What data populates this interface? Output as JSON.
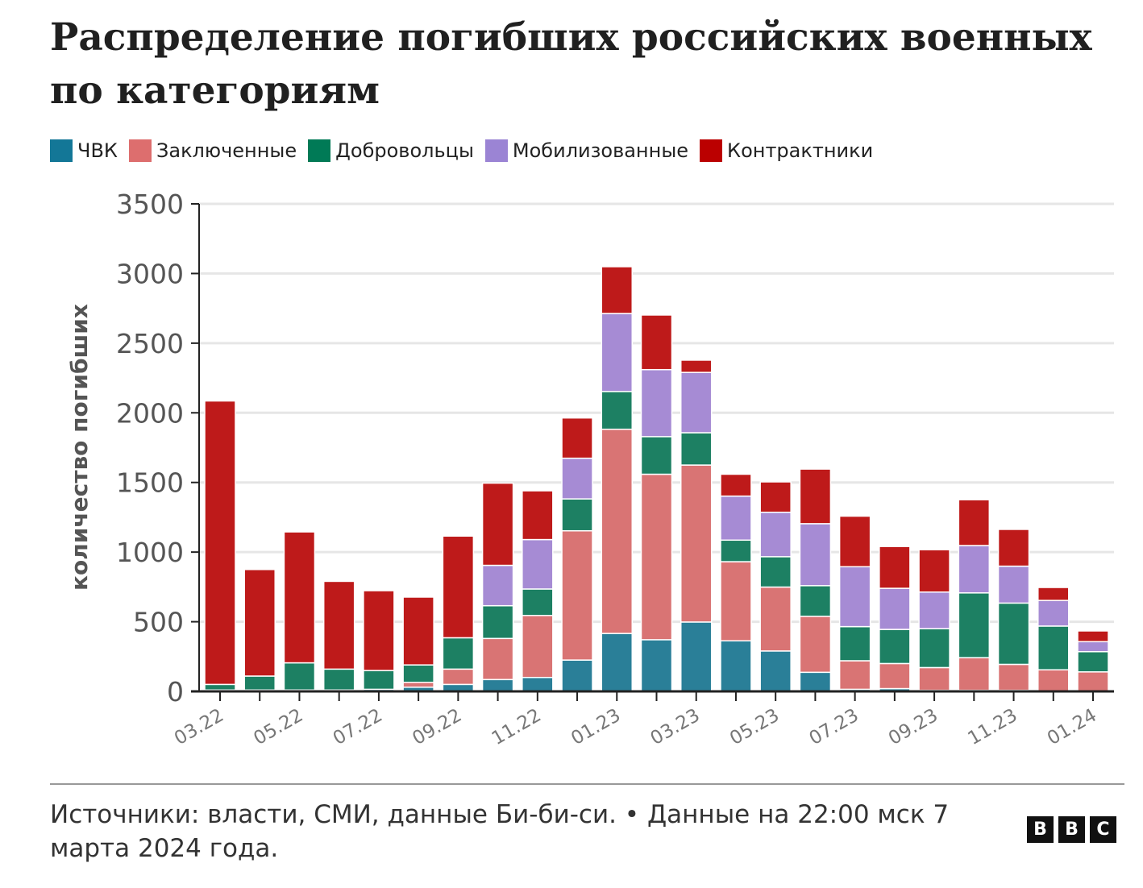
{
  "title": "Распределение погибших российских военных по категориям",
  "footer": {
    "source": "Источники: власти, СМИ, данные Би-би-си. • Данные на 22:00 мск 7 марта 2024 года.",
    "logo": "BBC"
  },
  "chart_data": {
    "type": "bar",
    "stacked": true,
    "title": "Распределение погибших российских военных по категориям",
    "xlabel": "",
    "ylabel": "количество погибших",
    "ylim": [
      0,
      3500
    ],
    "yticks": [
      0,
      500,
      1000,
      1500,
      2000,
      2500,
      3000,
      3500
    ],
    "grid": "horizontal",
    "legend": "top-left",
    "categories": [
      "03.22",
      "04.22",
      "05.22",
      "06.22",
      "07.22",
      "08.22",
      "09.22",
      "10.22",
      "11.22",
      "12.22",
      "01.23",
      "02.23",
      "03.23",
      "04.23",
      "05.23",
      "06.23",
      "07.23",
      "08.23",
      "09.23",
      "10.23",
      "11.23",
      "12.23",
      "01.24"
    ],
    "xtick_labels": [
      "03.22",
      "",
      "05.22",
      "",
      "07.22",
      "",
      "09.22",
      "",
      "11.22",
      "",
      "01.23",
      "",
      "03.23",
      "",
      "05.23",
      "",
      "07.23",
      "",
      "09.23",
      "",
      "11.23",
      "",
      "01.24"
    ],
    "series": [
      {
        "name": "ЧВК",
        "color": "#2a7f98",
        "legend_color": "#137797",
        "values": [
          10,
          10,
          10,
          10,
          15,
          30,
          50,
          85,
          100,
          225,
          416,
          371,
          498,
          363,
          290,
          137,
          15,
          20,
          8,
          8,
          8,
          3,
          0
        ]
      },
      {
        "name": "Заключенные",
        "color": "#d97474",
        "legend_color": "#dd6e6e",
        "values": [
          0,
          0,
          0,
          0,
          0,
          35,
          110,
          295,
          445,
          928,
          1466,
          1188,
          1127,
          568,
          459,
          402,
          205,
          180,
          163,
          234,
          186,
          152,
          140
        ]
      },
      {
        "name": "Добровольцы",
        "color": "#1d8063",
        "legend_color": "#007a56",
        "values": [
          40,
          100,
          195,
          150,
          135,
          125,
          225,
          235,
          190,
          229,
          271,
          270,
          232,
          155,
          218,
          220,
          245,
          245,
          279,
          465,
          440,
          314,
          145
        ]
      },
      {
        "name": "Мобилизованные",
        "color": "#a68bd4",
        "legend_color": "#9b84d4",
        "values": [
          0,
          0,
          0,
          0,
          0,
          0,
          0,
          290,
          355,
          292,
          560,
          481,
          433,
          316,
          319,
          445,
          430,
          295,
          263,
          340,
          265,
          184,
          72
        ]
      },
      {
        "name": "Контрактники",
        "color": "#be1a1a",
        "legend_color": "#bb0000",
        "values": [
          2035,
          765,
          940,
          630,
          573,
          487,
          730,
          590,
          350,
          289,
          336,
          392,
          88,
          157,
          218,
          392,
          363,
          300,
          304,
          329,
          264,
          93,
          77
        ]
      }
    ]
  }
}
